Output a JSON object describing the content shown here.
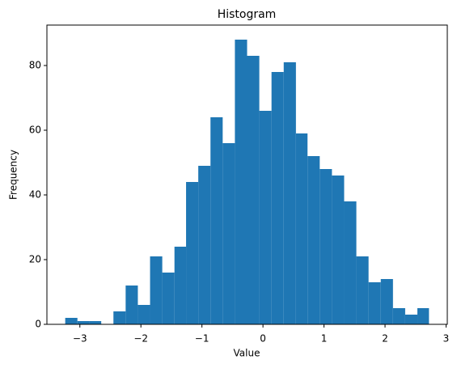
{
  "chart_data": {
    "type": "histogram",
    "title": "Histogram",
    "x_label": "Value",
    "y_label": "Frequency",
    "bins": [
      -3.24,
      -3.04,
      -2.85,
      -2.65,
      -2.45,
      -2.25,
      -2.05,
      -1.85,
      -1.65,
      -1.45,
      -1.26,
      -1.06,
      -0.86,
      -0.66,
      -0.46,
      -0.26,
      -0.06,
      0.14,
      0.34,
      0.54,
      0.73,
      0.93,
      1.13,
      1.33,
      1.53,
      1.73,
      1.93,
      2.13,
      2.33,
      2.53,
      2.72
    ],
    "values": [
      2,
      1,
      1,
      0,
      4,
      12,
      6,
      21,
      16,
      24,
      44,
      49,
      64,
      56,
      88,
      83,
      66,
      78,
      81,
      59,
      52,
      48,
      46,
      38,
      21,
      13,
      14,
      5,
      3,
      5
    ],
    "color": "#1f77b4",
    "xlim": [
      -3.54,
      3.02
    ],
    "ylim": [
      0,
      92.5
    ],
    "xticks": [
      {
        "value": -3,
        "label": "−3"
      },
      {
        "value": -2,
        "label": "−2"
      },
      {
        "value": -1,
        "label": "−1"
      },
      0,
      1,
      2,
      3
    ],
    "yticks": [
      0,
      20,
      40,
      60,
      80
    ]
  }
}
